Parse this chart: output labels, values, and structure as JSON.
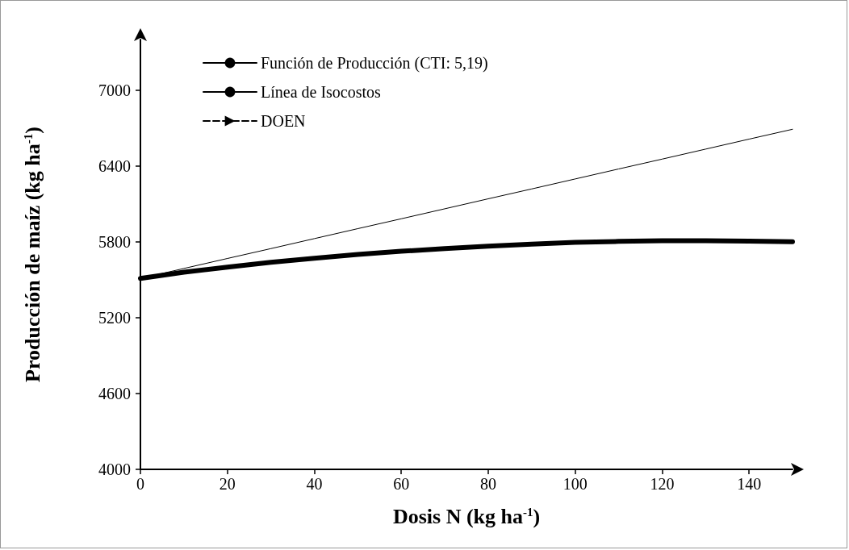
{
  "chart_data": {
    "type": "line",
    "xlabel": "Dosis N (kg ha$^{-1}$)",
    "ylabel": "Producción de maíz (kg ha$^{-1}$)",
    "x": [
      0,
      10,
      20,
      30,
      40,
      50,
      60,
      70,
      80,
      90,
      100,
      110,
      120,
      130,
      140,
      150
    ],
    "xlim": [
      0,
      150
    ],
    "xticks": [
      0,
      20,
      40,
      60,
      80,
      100,
      120,
      140
    ],
    "ylim": [
      4000,
      7400
    ],
    "yticks": [
      4000,
      4600,
      5200,
      5800,
      6400,
      7000
    ],
    "grid": false,
    "legend": "top left",
    "marker": "none",
    "series": [
      {
        "name": "Función de Producción (CTI: 5,19)",
        "color": "#000000",
        "line_style": "solid",
        "values": [
          5510,
          5560,
          5600,
          5638,
          5670,
          5700,
          5725,
          5747,
          5765,
          5782,
          5795,
          5803,
          5808,
          5808,
          5805,
          5800
        ]
      },
      {
        "name": "Línea de Isocostos",
        "color": "#000000",
        "line_style": "solid",
        "values": [
          5510,
          5589,
          5668,
          5746,
          5825,
          5904,
          5982,
          6061,
          6140,
          6218,
          6297,
          6376,
          6454,
          6533,
          6612,
          6690
        ]
      },
      {
        "name": "DOEN",
        "color": "#000000",
        "line_style": "dashed",
        "marker": "triangle",
        "values": [
          null,
          null,
          null,
          null,
          null,
          null,
          null,
          null,
          null,
          null,
          null,
          null,
          null,
          null,
          null,
          null
        ]
      }
    ]
  }
}
